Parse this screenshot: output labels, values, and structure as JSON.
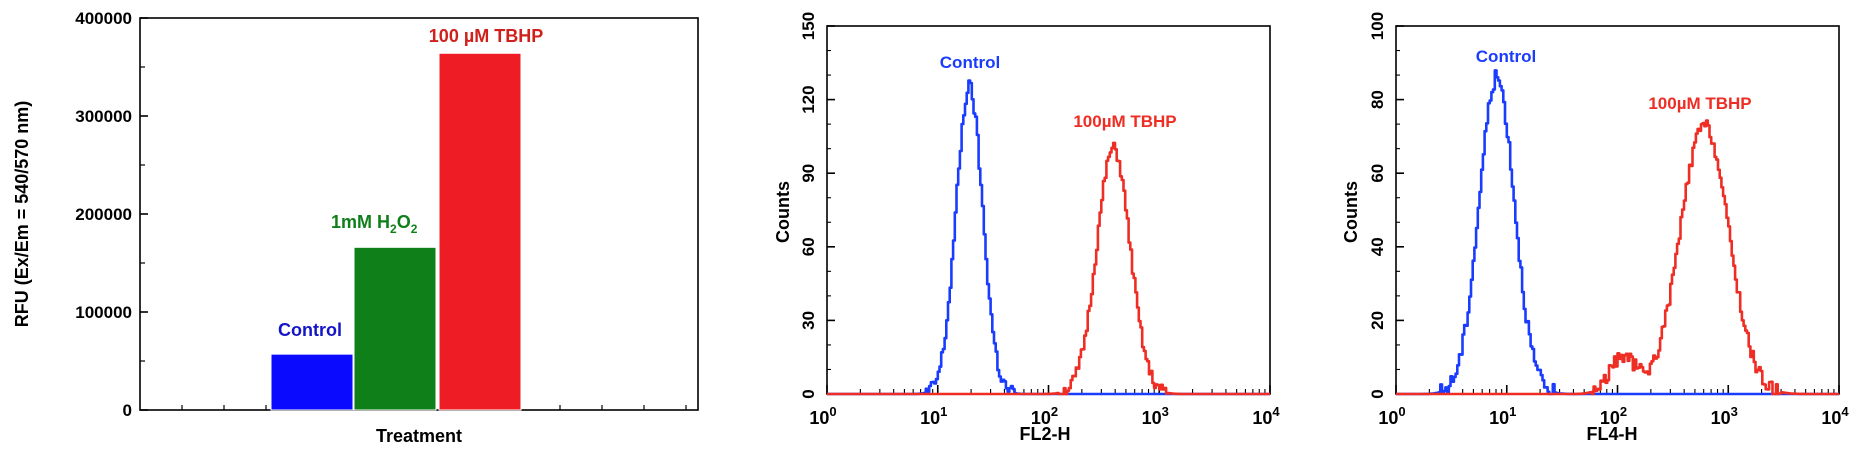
{
  "chart_data": [
    {
      "type": "bar",
      "title": "",
      "xlabel": "Treatment",
      "ylabel": "RFU (Ex/Em = 540/570 nm)",
      "ylim": [
        0,
        400000
      ],
      "yticks": [
        "0",
        "100000",
        "200000",
        "300000",
        "400000"
      ],
      "yticks_values": [
        0,
        100000,
        200000,
        300000,
        400000
      ],
      "categories": [
        "Control",
        "1mM H2O2",
        "100 µM TBHP"
      ],
      "values": [
        57000,
        166000,
        364000
      ],
      "colors": [
        "#0a0aff",
        "#0f7f1a",
        "#ee1c24"
      ],
      "labels": {
        "control": "Control",
        "h2o2_main": "1mM H",
        "h2o2_sub1": "2",
        "h2o2_mid": "O",
        "h2o2_sub2": "2",
        "tbhp": "100 µM TBHP"
      }
    },
    {
      "type": "line",
      "xscale": "log",
      "xlabel": "FL2-H",
      "ylabel": "Counts",
      "xlim": [
        1,
        10000
      ],
      "ylim": [
        0,
        150
      ],
      "yticks": [
        "0",
        "30",
        "60",
        "90",
        "120",
        "150"
      ],
      "yticks_values": [
        0,
        30,
        60,
        90,
        120,
        150
      ],
      "xticks_base": "10",
      "xticks_exp": [
        "0",
        "1",
        "2",
        "3",
        "4"
      ],
      "series": [
        {
          "name": "Control",
          "color": "#1a3cff",
          "peak_x": 19,
          "peak_y": 125,
          "width": 0.12
        },
        {
          "name": "100µM TBHP",
          "color": "#ee2e24",
          "peak_x": 380,
          "peak_y": 100,
          "width": 0.15
        }
      ]
    },
    {
      "type": "line",
      "xscale": "log",
      "xlabel": "FL4-H",
      "ylabel": "Counts",
      "xlim": [
        1,
        10000
      ],
      "ylim": [
        0,
        100
      ],
      "yticks": [
        "0",
        "20",
        "40",
        "60",
        "80",
        "100"
      ],
      "yticks_values": [
        0,
        20,
        40,
        60,
        80,
        100
      ],
      "xticks_base": "10",
      "xticks_exp": [
        "0",
        "1",
        "2",
        "3",
        "4"
      ],
      "series": [
        {
          "name": "Control",
          "color": "#1a3cff",
          "peak_x": 8,
          "peak_y": 86,
          "width": 0.16
        },
        {
          "name": "100µM TBHP",
          "color": "#ee2e24",
          "peak_x": 600,
          "peak_y": 73,
          "width": 0.22,
          "shoulder_x": 110,
          "shoulder_y": 10
        }
      ]
    }
  ]
}
